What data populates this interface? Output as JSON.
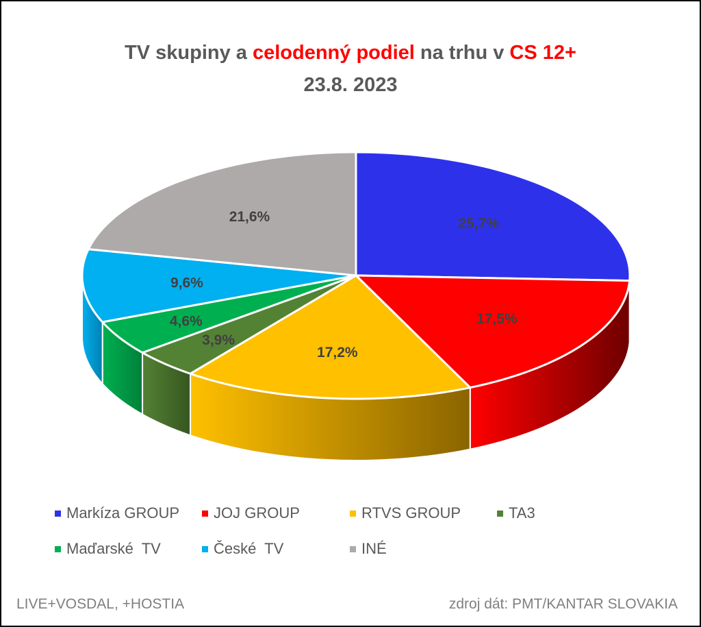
{
  "title": {
    "part1": "TV skupiny a ",
    "part2": "celodenný podiel",
    "part3": " na trhu v ",
    "part4": "CS 12+",
    "line2": "23.8. 2023"
  },
  "chart_data": {
    "type": "pie",
    "title": "TV skupiny a celodenný podiel na trhu v CS 12+ 23.8. 2023",
    "legend_position": "bottom",
    "slices": [
      {
        "name": "Markíza GROUP",
        "value": 25.7,
        "label": "25,7%",
        "color": "#2E31EA",
        "side": "#1a1c8a"
      },
      {
        "name": "JOJ GROUP",
        "value": 17.5,
        "label": "17,5%",
        "color": "#FF0000",
        "side": "#6e0000"
      },
      {
        "name": "RTVS GROUP",
        "value": 17.2,
        "label": "17,2%",
        "color": "#FFC000",
        "side": "#8a6400"
      },
      {
        "name": "TA3",
        "value": 3.9,
        "label": "3,9%",
        "color": "#548235",
        "side": "#36561f"
      },
      {
        "name": "Maďarské  TV",
        "value": 4.6,
        "label": "4,6%",
        "color": "#00B050",
        "side": "#00803a"
      },
      {
        "name": "České  TV",
        "value": 9.6,
        "label": "9,6%",
        "color": "#00B0F0",
        "side": "#0080b0"
      },
      {
        "name": "INÉ",
        "value": 21.6,
        "label": "21,6%",
        "color": "#AEAAAA",
        "side": "#777"
      }
    ]
  },
  "footer": {
    "left": "LIVE+VOSDAL, +HOSTIA",
    "right": "zdroj dát: PMT/KANTAR SLOVAKIA"
  }
}
